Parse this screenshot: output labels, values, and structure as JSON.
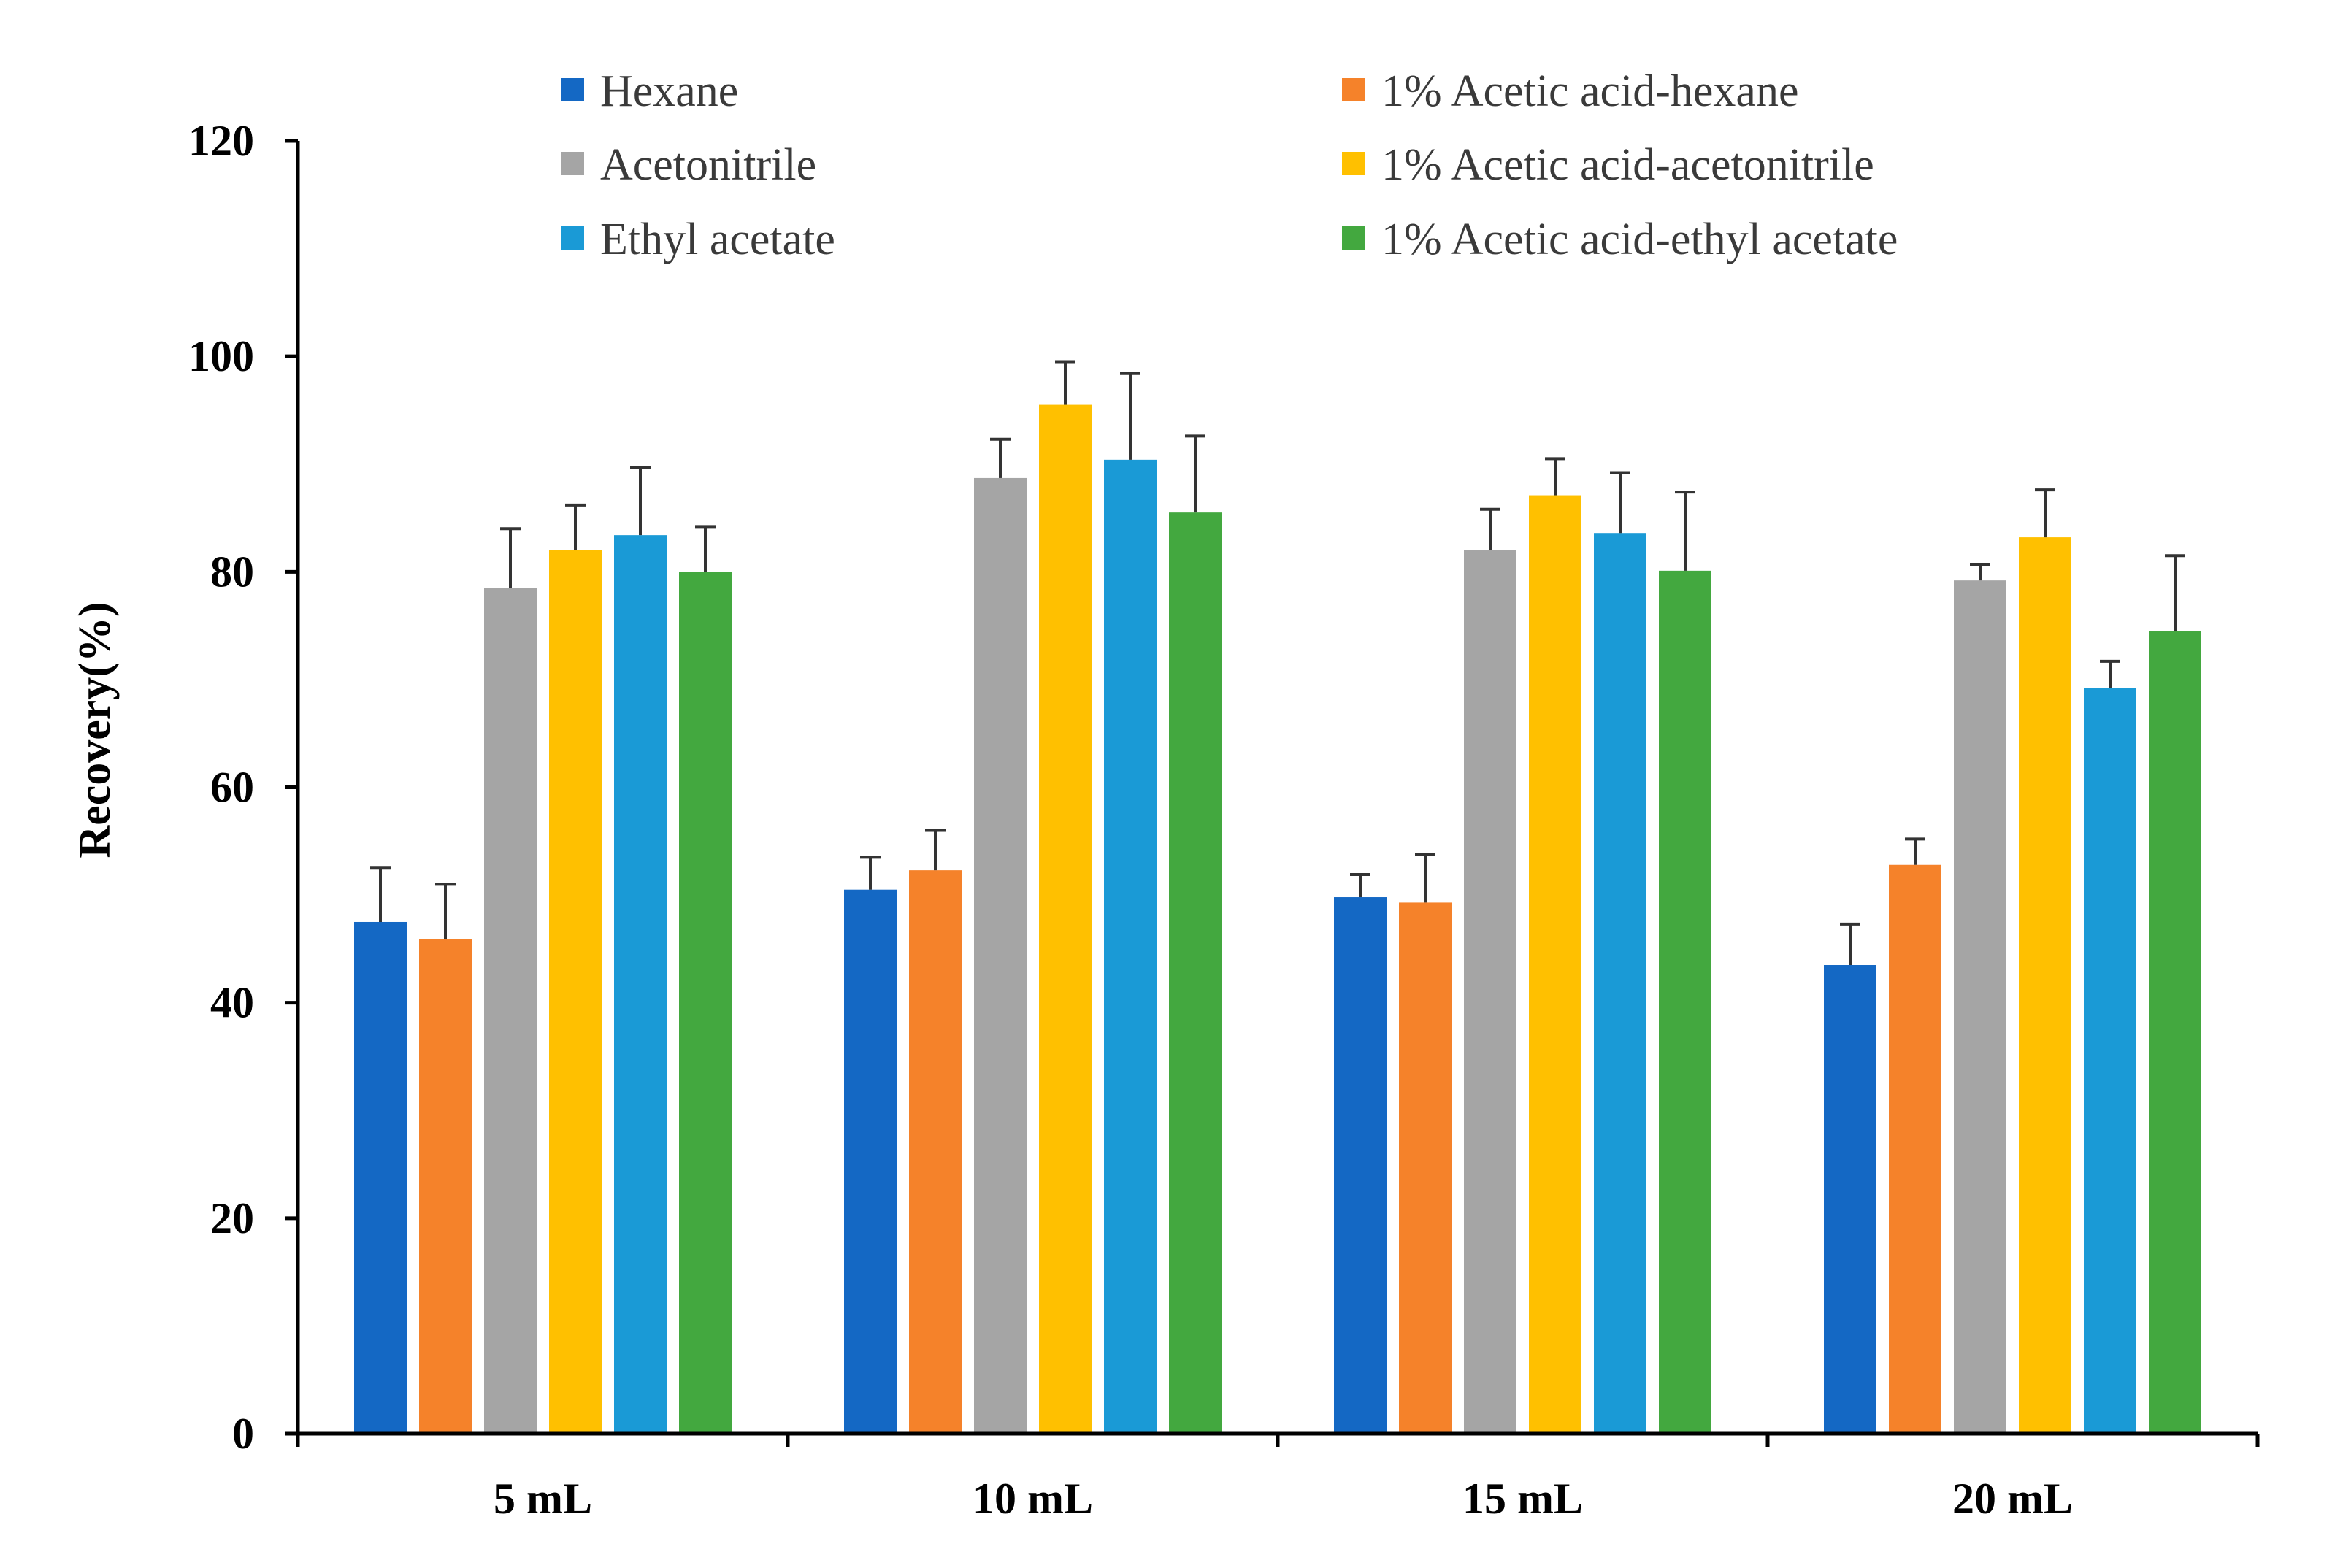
{
  "chart_data": {
    "type": "bar",
    "title": "",
    "xlabel": "",
    "ylabel": "Recovery(%)",
    "ylim": [
      0,
      120
    ],
    "yticks": [
      0,
      20,
      40,
      60,
      80,
      100,
      120
    ],
    "grid": false,
    "legend_position": "top",
    "categories": [
      "5 mL",
      "10 mL",
      "15 mL",
      "20 mL"
    ],
    "series": [
      {
        "name": "Hexane",
        "color": "#1468c4",
        "values": [
          47.5,
          50.5,
          49.8,
          43.5
        ],
        "errors": [
          5.0,
          3.0,
          2.1,
          3.8
        ]
      },
      {
        "name": "1% Acetic acid-hexane",
        "color": "#f5822a",
        "values": [
          45.9,
          52.3,
          49.3,
          52.8
        ],
        "errors": [
          5.1,
          3.7,
          4.5,
          2.4
        ]
      },
      {
        "name": "Acetonitrile",
        "color": "#a5a5a5",
        "values": [
          78.5,
          88.7,
          82.0,
          79.2
        ],
        "errors": [
          5.5,
          3.6,
          3.8,
          1.5
        ]
      },
      {
        "name": "1% Acetic acid-acetonitrile",
        "color": "#ffc000",
        "values": [
          82.0,
          95.5,
          87.1,
          83.2
        ],
        "errors": [
          4.2,
          4.0,
          3.4,
          4.4
        ]
      },
      {
        "name": "Ethyl acetate",
        "color": "#1a9ad6",
        "values": [
          83.4,
          90.4,
          83.6,
          69.2
        ],
        "errors": [
          6.3,
          8.0,
          5.6,
          2.5
        ]
      },
      {
        "name": "1% Acetic acid-ethyl acetate",
        "color": "#43a83f",
        "values": [
          80.0,
          85.5,
          80.1,
          74.5
        ],
        "errors": [
          4.2,
          7.1,
          7.3,
          7.0
        ]
      }
    ]
  }
}
